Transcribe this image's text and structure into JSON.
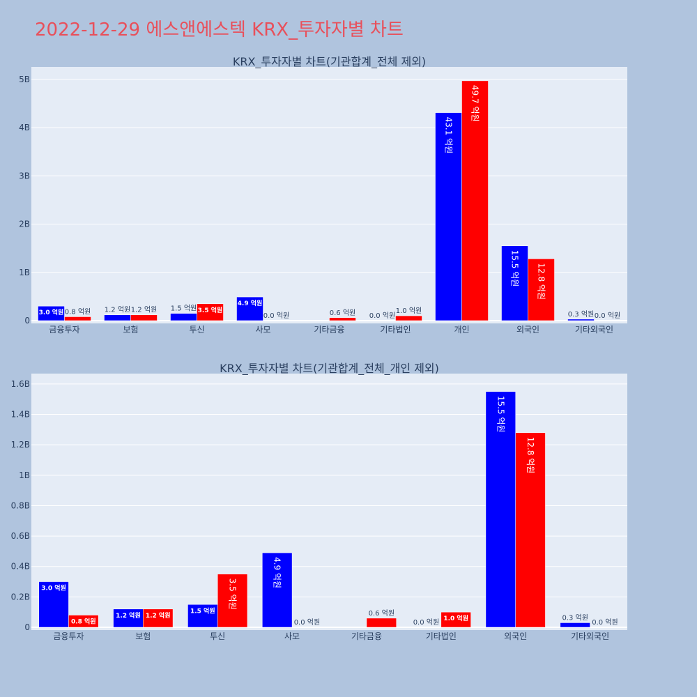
{
  "page": {
    "title": "2022-12-29 에스앤에스텍 KRX_투자자별 차트"
  },
  "colors": {
    "buy": "#0000ff",
    "sell": "#ff0000",
    "plot_bg": "#e5ecf6",
    "page_bg": "#b0c4de",
    "title": "#e8505b"
  },
  "chart_data": [
    {
      "type": "bar",
      "title": "KRX_투자자별 차트(기관합계_전체 제외)",
      "categories": [
        "금융투자",
        "보험",
        "투신",
        "사모",
        "기타금융",
        "기타법인",
        "개인",
        "외국인",
        "기타외국인"
      ],
      "series": [
        {
          "color": "#0000ff",
          "values": [
            0.3,
            0.12,
            0.15,
            0.49,
            0.0,
            0.0,
            4.31,
            1.55,
            0.03
          ],
          "labels": [
            "3.0 억원",
            "1.2 억원",
            "1.5 억원",
            "4.9 억원",
            "",
            "0.0 억원",
            "43.1 억원",
            "15.5 억원",
            "0.3 억원"
          ]
        },
        {
          "color": "#ff0000",
          "values": [
            0.08,
            0.12,
            0.35,
            0.0,
            0.06,
            0.1,
            4.97,
            1.28,
            0.0
          ],
          "labels": [
            "0.8 억원",
            "1.2 억원",
            "3.5 억원",
            "0.0 억원",
            "0.6 억원",
            "1.0 억원",
            "49.7 억원",
            "12.8 억원",
            "0.0 억원"
          ]
        }
      ],
      "value_unit": "B",
      "ylim": [
        0,
        5.2
      ],
      "yticks": [
        0,
        1,
        2,
        3,
        4,
        5
      ],
      "ytick_labels": [
        "0",
        "1B",
        "2B",
        "3B",
        "4B",
        "5B"
      ],
      "grid": true
    },
    {
      "type": "bar",
      "title": "KRX_투자자별 차트(기관합계_전체_개인 제외)",
      "categories": [
        "금융투자",
        "보험",
        "투신",
        "사모",
        "기타금융",
        "기타법인",
        "외국인",
        "기타외국인"
      ],
      "series": [
        {
          "color": "#0000ff",
          "values": [
            0.3,
            0.12,
            0.15,
            0.49,
            0.0,
            0.0,
            1.55,
            0.03
          ],
          "labels": [
            "3.0 억원",
            "1.2 억원",
            "1.5 억원",
            "4.9 억원",
            "",
            "0.0 억원",
            "15.5 억원",
            "0.3 억원"
          ]
        },
        {
          "color": "#ff0000",
          "values": [
            0.08,
            0.12,
            0.35,
            0.0,
            0.06,
            0.1,
            1.28,
            0.0
          ],
          "labels": [
            "0.8 억원",
            "1.2 억원",
            "3.5 억원",
            "0.0 억원",
            "0.6 억원",
            "1.0 억원",
            "12.8 억원",
            "0.0 억원"
          ]
        }
      ],
      "value_unit": "B",
      "ylim": [
        0,
        1.65
      ],
      "yticks": [
        0,
        0.2,
        0.4,
        0.6,
        0.8,
        1.0,
        1.2,
        1.4,
        1.6
      ],
      "ytick_labels": [
        "0",
        "0.2B",
        "0.4B",
        "0.6B",
        "0.8B",
        "1B",
        "1.2B",
        "1.4B",
        "1.6B"
      ],
      "grid": true
    }
  ]
}
